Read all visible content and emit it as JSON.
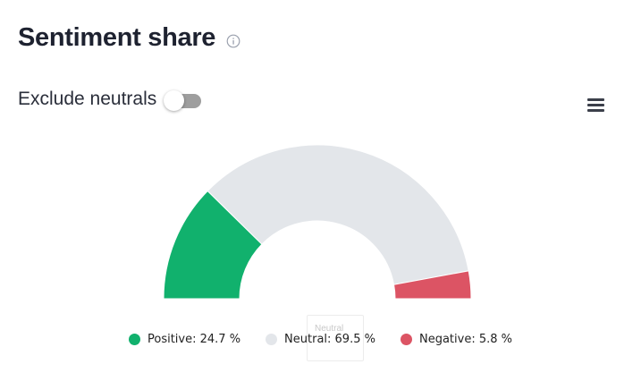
{
  "header": {
    "title": "Sentiment share"
  },
  "icons": {
    "info": "info-icon",
    "menu": "hamburger-menu-icon"
  },
  "controls": {
    "exclude_neutrals_label": "Exclude neutrals",
    "exclude_neutrals_on": false
  },
  "tooltip": {
    "label": "Neutral"
  },
  "chart_data": {
    "type": "pie",
    "variant": "semi-circle donut",
    "categories": [
      "Positive",
      "Neutral",
      "Negative"
    ],
    "values": [
      24.7,
      69.5,
      5.8
    ],
    "unit": "%",
    "colors": [
      "#11b16d",
      "#e3e6ea",
      "#dc5464"
    ],
    "legend": "bottom",
    "legend_labels": [
      "Positive: 24.7 %",
      "Neutral: 69.5 %",
      "Negative: 5.8 %"
    ]
  }
}
